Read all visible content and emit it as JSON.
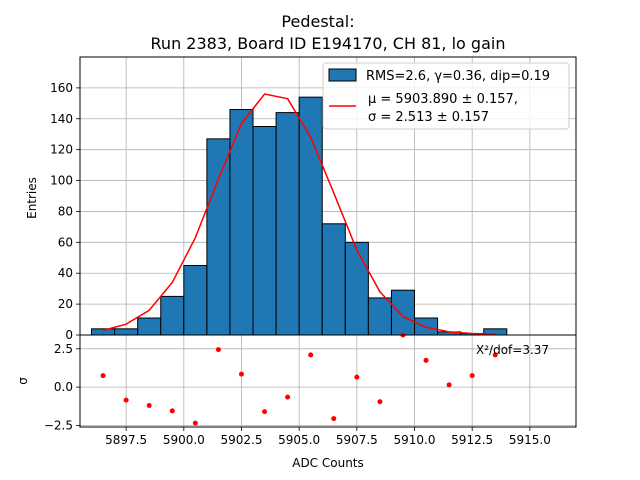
{
  "chart_data": [
    {
      "type": "bar",
      "panel": "top",
      "title_line1": "Pedestal:",
      "title_line2": "Run 2383, Board ID E194170, CH 81, lo gain",
      "ylabel": "Entries",
      "xlim": [
        5895.5,
        5917.0
      ],
      "ylim": [
        0,
        180
      ],
      "y_ticks": [
        0,
        20,
        40,
        60,
        80,
        100,
        120,
        140,
        160
      ],
      "grid": true,
      "legend_position": "top-right",
      "bar_color": "#1f77b4",
      "fit_color": "#ff0000",
      "histogram": {
        "name": "RMS=2.6, γ=0.36, dip=0.19",
        "bins": [
          {
            "x0": 5896.0,
            "x1": 5897.0,
            "count": 4
          },
          {
            "x0": 5897.0,
            "x1": 5898.0,
            "count": 4
          },
          {
            "x0": 5898.0,
            "x1": 5899.0,
            "count": 11
          },
          {
            "x0": 5899.0,
            "x1": 5900.0,
            "count": 25
          },
          {
            "x0": 5900.0,
            "x1": 5901.0,
            "count": 45
          },
          {
            "x0": 5901.0,
            "x1": 5902.0,
            "count": 127
          },
          {
            "x0": 5902.0,
            "x1": 5903.0,
            "count": 146
          },
          {
            "x0": 5903.0,
            "x1": 5904.0,
            "count": 135
          },
          {
            "x0": 5904.0,
            "x1": 5905.0,
            "count": 144
          },
          {
            "x0": 5905.0,
            "x1": 5906.0,
            "count": 154
          },
          {
            "x0": 5906.0,
            "x1": 5907.0,
            "count": 72
          },
          {
            "x0": 5907.0,
            "x1": 5908.0,
            "count": 60
          },
          {
            "x0": 5908.0,
            "x1": 5909.0,
            "count": 24
          },
          {
            "x0": 5909.0,
            "x1": 5910.0,
            "count": 29
          },
          {
            "x0": 5910.0,
            "x1": 5911.0,
            "count": 11
          },
          {
            "x0": 5911.0,
            "x1": 5912.0,
            "count": 2
          },
          {
            "x0": 5912.0,
            "x1": 5913.0,
            "count": 1
          },
          {
            "x0": 5913.0,
            "x1": 5914.0,
            "count": 4
          }
        ]
      },
      "fit": {
        "label_line1": "μ = 5903.890 ± 0.157,",
        "label_line2": "σ = 2.513 ± 0.157",
        "x": [
          5896.5,
          5897.5,
          5898.5,
          5899.5,
          5900.5,
          5901.5,
          5902.5,
          5903.5,
          5904.5,
          5905.5,
          5906.5,
          5907.5,
          5908.5,
          5909.5,
          5910.5,
          5911.5,
          5912.5,
          5913.5
        ],
        "y": [
          3,
          7,
          16,
          34,
          63,
          101,
          137,
          156,
          153,
          128,
          92,
          55,
          28,
          12,
          5,
          2,
          1,
          0.5
        ]
      }
    },
    {
      "type": "scatter",
      "panel": "bottom",
      "xlabel": "ADC Counts",
      "ylabel": "σ",
      "xlim": [
        5895.5,
        5917.0
      ],
      "ylim": [
        -2.6,
        3.4
      ],
      "x_ticks": [
        5897.5,
        5900.0,
        5902.5,
        5905.0,
        5907.5,
        5910.0,
        5912.5,
        5915.0
      ],
      "x_tick_labels": [
        "5897.5",
        "5900.0",
        "5902.5",
        "5905.0",
        "5907.5",
        "5910.0",
        "5912.5",
        "5915.0"
      ],
      "y_ticks": [
        -2.5,
        0.0,
        2.5
      ],
      "y_tick_labels": [
        "−2.5",
        "0.0",
        "2.5"
      ],
      "grid": true,
      "annotation": "X²/dof=3.37",
      "point_color": "#ff0000",
      "points": {
        "x": [
          5896.5,
          5897.5,
          5898.5,
          5899.5,
          5900.5,
          5901.5,
          5902.5,
          5903.5,
          5904.5,
          5905.5,
          5906.5,
          5907.5,
          5908.5,
          5909.5,
          5910.5,
          5911.5,
          5912.5,
          5913.5
        ],
        "y": [
          0.75,
          -0.85,
          -1.2,
          -1.55,
          -2.35,
          2.45,
          0.85,
          -1.6,
          -0.65,
          2.1,
          -2.05,
          0.65,
          -0.95,
          3.4,
          1.75,
          0.15,
          0.75,
          2.1
        ]
      }
    }
  ]
}
